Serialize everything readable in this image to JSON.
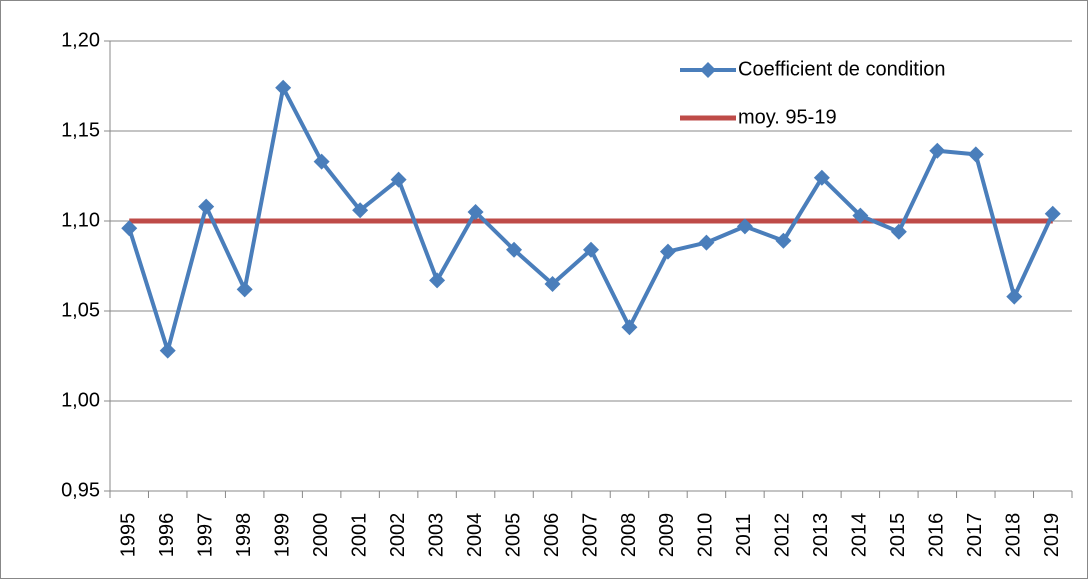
{
  "chart_data": {
    "type": "line",
    "categories": [
      "1995",
      "1996",
      "1997",
      "1998",
      "1999",
      "2000",
      "2001",
      "2002",
      "2003",
      "2004",
      "2005",
      "2006",
      "2007",
      "2008",
      "2009",
      "2010",
      "2011",
      "2012",
      "2013",
      "2014",
      "2015",
      "2016",
      "2017",
      "2018",
      "2019"
    ],
    "series": [
      {
        "name": "Coefficient de condition",
        "color": "#4a7ebb",
        "marker": "diamond",
        "values": [
          1.096,
          1.028,
          1.108,
          1.062,
          1.174,
          1.133,
          1.106,
          1.123,
          1.067,
          1.105,
          1.084,
          1.065,
          1.084,
          1.041,
          1.083,
          1.088,
          1.097,
          1.089,
          1.124,
          1.103,
          1.094,
          1.139,
          1.137,
          1.058,
          1.104
        ]
      },
      {
        "name": "moy. 95-19",
        "color": "#be4b48",
        "values": [
          1.1,
          1.1,
          1.1,
          1.1,
          1.1,
          1.1,
          1.1,
          1.1,
          1.1,
          1.1,
          1.1,
          1.1,
          1.1,
          1.1,
          1.1,
          1.1,
          1.1,
          1.1,
          1.1,
          1.1,
          1.1,
          1.1,
          1.1,
          1.1,
          1.1
        ]
      }
    ],
    "ylim": [
      0.95,
      1.2
    ],
    "yticks": [
      {
        "value": 0.95,
        "label": "0,95"
      },
      {
        "value": 1.0,
        "label": "1,00"
      },
      {
        "value": 1.05,
        "label": "1,05"
      },
      {
        "value": 1.1,
        "label": "1,10"
      },
      {
        "value": 1.15,
        "label": "1,15"
      },
      {
        "value": 1.2,
        "label": "1,20"
      }
    ],
    "grid": true,
    "legend": "upper right"
  }
}
